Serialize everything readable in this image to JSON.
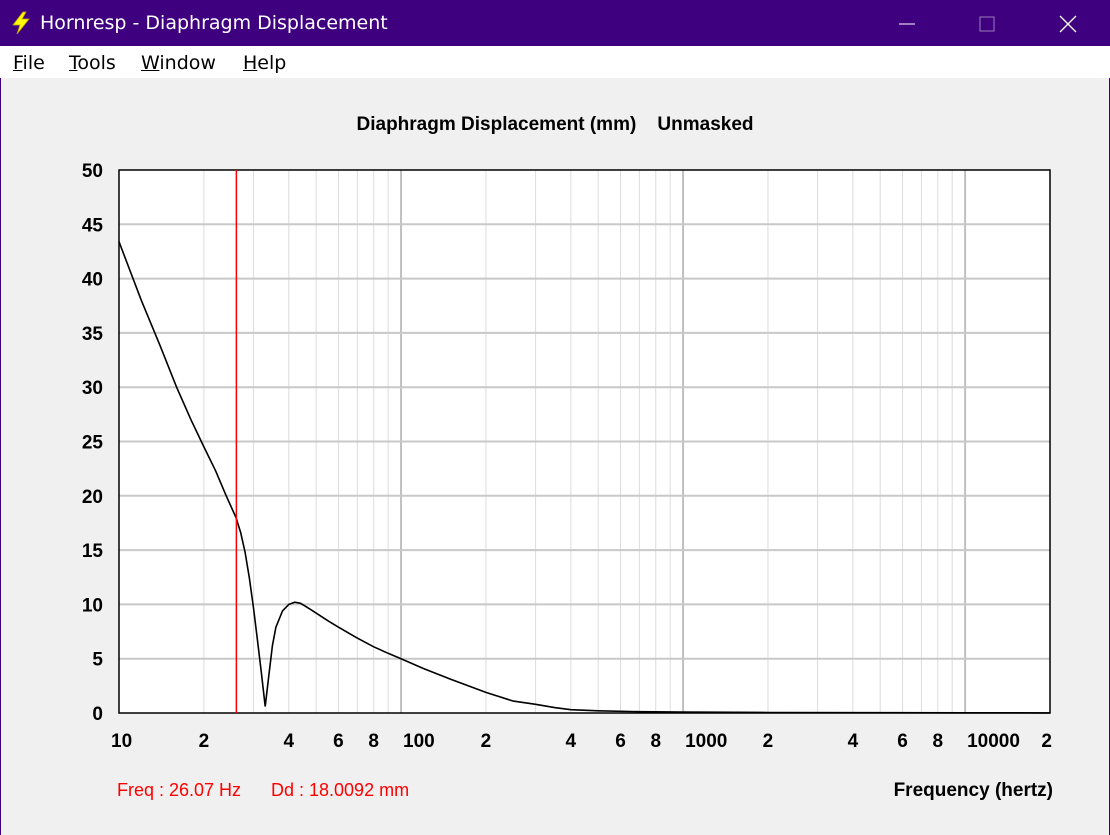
{
  "window": {
    "title": "Hornresp - Diaphragm Displacement",
    "app_icon": "lightning-bolt-icon",
    "controls": [
      "minimize-icon",
      "maximize-icon",
      "close-icon"
    ],
    "accent_color": "#3f0080"
  },
  "menu": {
    "items": [
      {
        "label": "File",
        "mnemonic_index": 0
      },
      {
        "label": "Tools",
        "mnemonic_index": 0
      },
      {
        "label": "Window",
        "mnemonic_index": 0
      },
      {
        "label": "Help",
        "mnemonic_index": 0
      }
    ]
  },
  "chart_data": {
    "type": "line",
    "title": "Diaphragm Displacement (mm)    Unmasked",
    "xlabel": "Frequency (hertz)",
    "ylabel": "",
    "x_scale": "log",
    "xlim": [
      10,
      20000
    ],
    "ylim": [
      0,
      50
    ],
    "grid": true,
    "yticks": [
      0,
      5,
      10,
      15,
      20,
      25,
      30,
      35,
      40,
      45,
      50
    ],
    "xtick_labels": [
      {
        "x": 10,
        "label": "10"
      },
      {
        "x": 20,
        "label": "2"
      },
      {
        "x": 40,
        "label": "4"
      },
      {
        "x": 60,
        "label": "6"
      },
      {
        "x": 80,
        "label": "8"
      },
      {
        "x": 100,
        "label": "100"
      },
      {
        "x": 200,
        "label": "2"
      },
      {
        "x": 400,
        "label": "4"
      },
      {
        "x": 600,
        "label": "6"
      },
      {
        "x": 800,
        "label": "8"
      },
      {
        "x": 1000,
        "label": "1000"
      },
      {
        "x": 2000,
        "label": "2"
      },
      {
        "x": 4000,
        "label": "4"
      },
      {
        "x": 6000,
        "label": "6"
      },
      {
        "x": 8000,
        "label": "8"
      },
      {
        "x": 10000,
        "label": "10000"
      },
      {
        "x": 20000,
        "label": "2"
      }
    ],
    "series": [
      {
        "color": "#000000",
        "x": [
          10,
          12,
          14,
          16,
          18,
          20,
          22,
          24,
          26,
          27,
          28,
          29,
          30,
          31,
          32,
          33,
          34,
          35,
          36,
          38,
          40,
          42,
          44,
          46,
          48,
          50,
          55,
          60,
          70,
          80,
          90,
          100,
          120,
          150,
          200,
          250,
          300,
          350,
          400,
          500,
          700,
          1000,
          2000,
          5000,
          10000,
          20000
        ],
        "y": [
          43.4,
          38.0,
          33.8,
          30.0,
          27.0,
          24.5,
          22.3,
          20.0,
          18.0,
          16.6,
          14.8,
          12.4,
          9.6,
          6.6,
          3.6,
          0.6,
          3.5,
          6.2,
          7.9,
          9.4,
          10.0,
          10.2,
          10.1,
          9.8,
          9.5,
          9.2,
          8.5,
          7.9,
          6.9,
          6.1,
          5.5,
          5.0,
          4.1,
          3.1,
          1.9,
          1.1,
          0.8,
          0.5,
          0.3,
          0.2,
          0.12,
          0.08,
          0.05,
          0.03,
          0.02,
          0.01
        ]
      }
    ],
    "cursor": {
      "x": 26.07,
      "color": "#ff0000"
    }
  },
  "readout": {
    "freq": "Freq : 26.07 Hz",
    "dd": "Dd : 18.0092 mm",
    "color": "#ff0000"
  }
}
